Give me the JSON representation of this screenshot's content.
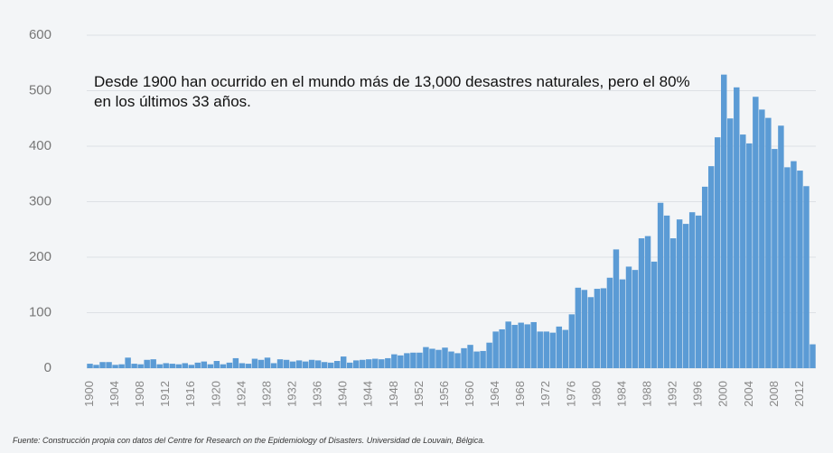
{
  "chart_data": {
    "type": "bar",
    "annotation": [
      "Desde 1900 han ocurrido en el mundo más de 13,000 desastres naturales, pero el 80%",
      "en los últimos 33 años."
    ],
    "source": "Fuente: Construcción propia con datos del Centre for Research on the Epidemiology of Disasters. Universidad de Louvain, Bélgica.",
    "x": [
      1900,
      1901,
      1902,
      1903,
      1904,
      1905,
      1906,
      1907,
      1908,
      1909,
      1910,
      1911,
      1912,
      1913,
      1914,
      1915,
      1916,
      1917,
      1918,
      1919,
      1920,
      1921,
      1922,
      1923,
      1924,
      1925,
      1926,
      1927,
      1928,
      1929,
      1930,
      1931,
      1932,
      1933,
      1934,
      1935,
      1936,
      1937,
      1938,
      1939,
      1940,
      1941,
      1942,
      1943,
      1944,
      1945,
      1946,
      1947,
      1948,
      1949,
      1950,
      1951,
      1952,
      1953,
      1954,
      1955,
      1956,
      1957,
      1958,
      1959,
      1960,
      1961,
      1962,
      1963,
      1964,
      1965,
      1966,
      1967,
      1968,
      1969,
      1970,
      1971,
      1972,
      1973,
      1974,
      1975,
      1976,
      1977,
      1978,
      1979,
      1980,
      1981,
      1982,
      1983,
      1984,
      1985,
      1986,
      1987,
      1988,
      1989,
      1990,
      1991,
      1992,
      1993,
      1994,
      1995,
      1996,
      1997,
      1998,
      1999,
      2000,
      2001,
      2002,
      2003,
      2004,
      2005,
      2006,
      2007,
      2008,
      2009,
      2010,
      2011,
      2012,
      2013,
      2014
    ],
    "values": [
      8,
      6,
      11,
      11,
      6,
      7,
      19,
      8,
      7,
      15,
      16,
      7,
      9,
      8,
      7,
      9,
      6,
      10,
      12,
      7,
      13,
      7,
      10,
      18,
      9,
      8,
      17,
      15,
      19,
      9,
      16,
      15,
      12,
      14,
      12,
      15,
      14,
      11,
      10,
      13,
      21,
      10,
      14,
      15,
      16,
      17,
      16,
      18,
      25,
      23,
      27,
      28,
      28,
      38,
      35,
      33,
      37,
      30,
      27,
      36,
      42,
      30,
      31,
      46,
      66,
      70,
      84,
      78,
      82,
      79,
      83,
      66,
      66,
      64,
      75,
      69,
      97,
      145,
      141,
      128,
      143,
      144,
      163,
      214,
      160,
      183,
      177,
      234,
      238,
      192,
      298,
      275,
      234,
      268,
      260,
      281,
      275,
      327,
      364,
      416,
      529,
      450,
      506,
      421,
      405,
      489,
      466,
      451,
      395,
      437,
      362,
      373,
      356,
      328,
      43
    ],
    "color": "#5b9bd5",
    "xlim": [
      1899.5,
      2014.5
    ],
    "xticks": [
      1900,
      1904,
      1908,
      1912,
      1916,
      1920,
      1924,
      1928,
      1932,
      1936,
      1940,
      1944,
      1948,
      1952,
      1956,
      1960,
      1964,
      1968,
      1972,
      1976,
      1980,
      1984,
      1988,
      1992,
      1996,
      2000,
      2004,
      2008,
      2012
    ],
    "ylim": [
      0,
      600
    ],
    "yticks": [
      0,
      100,
      200,
      300,
      400,
      500,
      600
    ],
    "grid": true
  }
}
